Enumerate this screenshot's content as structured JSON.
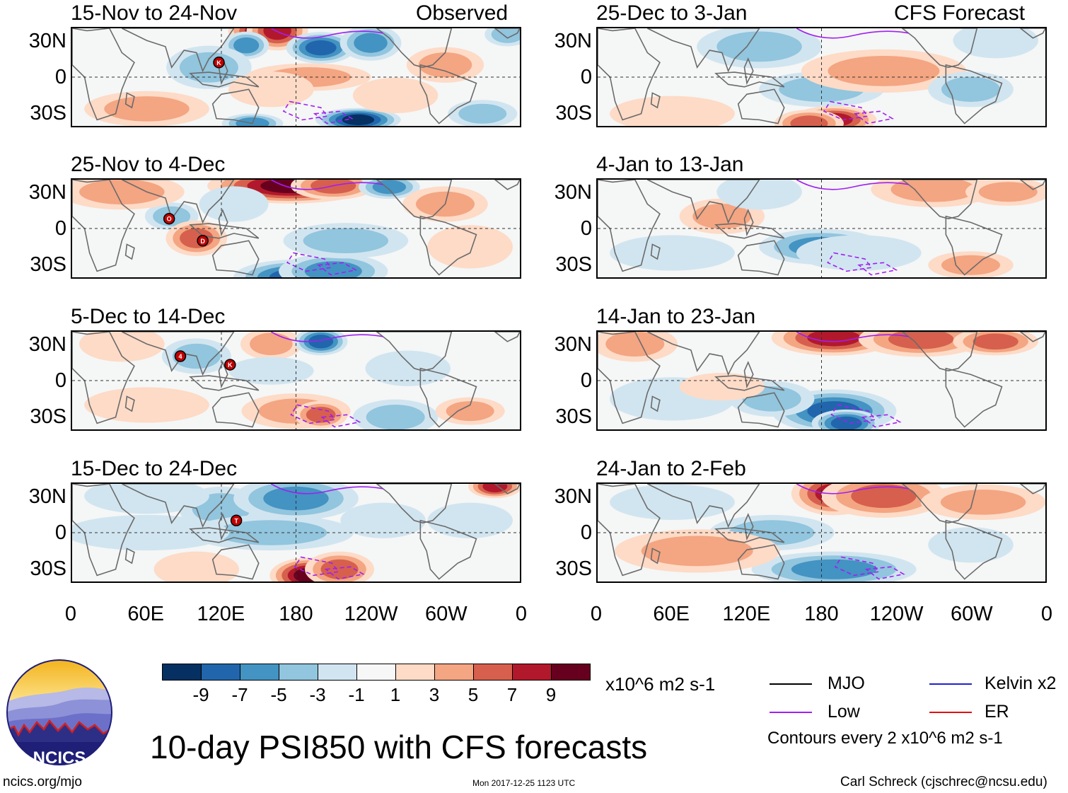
{
  "chart_data": {
    "type": "heatmap",
    "title": "10-day PSI850 with CFS forecasts",
    "variable": "PSI850 anomaly",
    "units": "x10^6 m2 s-1",
    "contour_interval_text": "Contours every 2 x10^6 m2 s-1",
    "colorbar": {
      "ticks": [
        "-9",
        "-7",
        "-5",
        "-3",
        "-1",
        "1",
        "3",
        "5",
        "7",
        "9"
      ],
      "colors": [
        "#053061",
        "#2166ac",
        "#4393c3",
        "#92c5de",
        "#d1e5f0",
        "#f7f7f7",
        "#fddbc7",
        "#f4a582",
        "#d6604d",
        "#b2182b",
        "#67001f"
      ]
    },
    "latitude_labels": [
      "30N",
      "0",
      "30S"
    ],
    "longitude_labels": [
      "0",
      "60E",
      "120E",
      "180",
      "120W",
      "60W",
      "0"
    ],
    "columns": [
      {
        "header": "Observed",
        "panels": [
          {
            "title": "15-Nov to 24-Nov",
            "storms": [
              "K"
            ]
          },
          {
            "title": "25-Nov to 4-Dec",
            "storms": [
              "O",
              "D"
            ]
          },
          {
            "title": "5-Dec to 14-Dec",
            "storms": [
              "4",
              "K"
            ]
          },
          {
            "title": "15-Dec to 24-Dec",
            "storms": [
              "T"
            ]
          }
        ]
      },
      {
        "header": "CFS Forecast",
        "panels": [
          {
            "title": "25-Dec to 3-Jan",
            "storms": []
          },
          {
            "title": "4-Jan to 13-Jan",
            "storms": []
          },
          {
            "title": "14-Jan to 23-Jan",
            "storms": []
          },
          {
            "title": "24-Jan to 2-Feb",
            "storms": []
          }
        ]
      }
    ],
    "legend": [
      {
        "label": "MJO",
        "color": "#000000"
      },
      {
        "label": "Kelvin x2",
        "color": "#2020d0"
      },
      {
        "label": "Low",
        "color": "#a020f0"
      },
      {
        "label": "ER",
        "color": "#e01010"
      }
    ]
  },
  "logo": {
    "text": "NCICS"
  },
  "footer": {
    "url": "ncics.org/mjo",
    "timestamp": "Mon 2017-12-25 1123 UTC",
    "credit": "Carl Schreck (cjschrec@ncsu.edu)"
  }
}
